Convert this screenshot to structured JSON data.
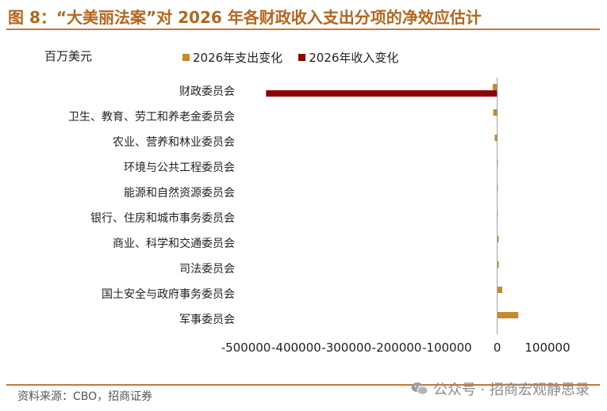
{
  "header": {
    "title": "图 8：“大美丽法案”对 2026 年各财政收入支出分项的净效应估计"
  },
  "footer": {
    "source": "资料来源：CBO，招商证券",
    "watermark": "公众号 · 招商宏观静思录"
  },
  "chart_data": {
    "type": "bar",
    "orientation": "horizontal",
    "unit_label": "百万美元",
    "categories": [
      "财政委员会",
      "卫生、教育、劳工和养老金委员会",
      "农业、营养和林业委员会",
      "环境与公共工程委员会",
      "能源和自然资源委员会",
      "银行、住房和城市事务委员会",
      "商业、科学和交通委员会",
      "司法委员会",
      "国土安全与政府事务委员会",
      "军事委员会"
    ],
    "series": [
      {
        "name": "2026年支出变化",
        "color": "#c48a2c",
        "values": [
          -9000,
          -8000,
          -5000,
          -500,
          -500,
          -500,
          3000,
          3000,
          10000,
          42000
        ]
      },
      {
        "name": "2026年收入变化",
        "color": "#8b0000",
        "values": [
          -460000,
          0,
          0,
          0,
          0,
          0,
          0,
          0,
          0,
          0
        ]
      }
    ],
    "xlim": [
      -500000,
      100000
    ],
    "xticks": [
      -500000,
      -400000,
      -300000,
      -200000,
      -100000,
      0,
      100000
    ],
    "legend_position": "top",
    "grid": false
  }
}
